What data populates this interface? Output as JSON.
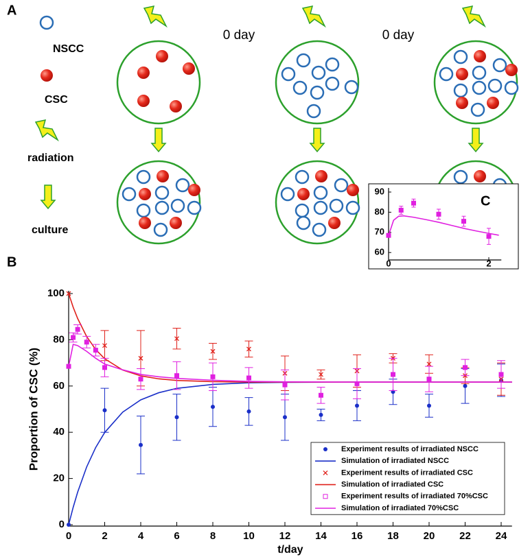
{
  "diagram": {
    "panel_label": "A",
    "legend": [
      "NSCC",
      "CSC",
      "radiation",
      "culture"
    ],
    "day_labels": [
      "0 day",
      "0 day"
    ]
  },
  "chart_data": [
    {
      "type": "line",
      "panel_label": "B",
      "xlabel": "t/day",
      "ylabel": "Proportion of CSC (%)",
      "xlim": [
        0,
        24.6
      ],
      "ylim": [
        0,
        100
      ],
      "xticks": [
        0,
        2,
        4,
        6,
        8,
        10,
        12,
        14,
        16,
        18,
        20,
        22,
        24
      ],
      "yticks": [
        0,
        20,
        40,
        60,
        80,
        100
      ],
      "legend": "lower right",
      "series": [
        {
          "name": "Experiment results of irradiated NSCC",
          "kind": "scatter",
          "marker": "dot",
          "color": "#1a2fc8",
          "x": [
            0,
            2,
            4,
            6,
            8,
            10,
            12,
            14,
            16,
            18,
            20,
            22,
            24
          ],
          "values": [
            0,
            49.5,
            34.5,
            46.5,
            51,
            49,
            46.5,
            47.5,
            51.5,
            57.5,
            51.5,
            60,
            62.5
          ],
          "errors": [
            0,
            9.5,
            12.5,
            10,
            8.5,
            6,
            10,
            2.5,
            6.5,
            5.5,
            5,
            7.5,
            7
          ]
        },
        {
          "name": "Simulation of irradiated NSCC",
          "kind": "line",
          "color": "#1a2fc8",
          "x": [
            0,
            0.25,
            0.5,
            1,
            1.5,
            2,
            3,
            4,
            5,
            6,
            8,
            10,
            12,
            16,
            20,
            24.6
          ],
          "values": [
            0,
            7.5,
            14.1,
            25,
            33.4,
            39.9,
            48.7,
            54,
            57.1,
            59,
            60.7,
            61.4,
            61.6,
            61.7,
            61.7,
            61.7
          ]
        },
        {
          "name": "Experiment results of irradiated CSC",
          "kind": "scatter",
          "marker": "x",
          "color": "#e0201a",
          "x": [
            0,
            2,
            4,
            6,
            8,
            10,
            12,
            14,
            16,
            18,
            20,
            22,
            24
          ],
          "values": [
            100,
            77.5,
            72,
            80.5,
            75,
            76,
            65.5,
            65,
            66.5,
            72,
            69.5,
            64.5,
            63
          ],
          "errors": [
            0,
            6.5,
            12,
            4.5,
            3.5,
            3.5,
            7.5,
            2,
            7,
            2,
            4,
            3.5,
            7
          ]
        },
        {
          "name": "Simulation of irradiated CSC",
          "kind": "line",
          "color": "#e0201a",
          "x": [
            0,
            0.25,
            0.5,
            1,
            1.5,
            2,
            3,
            4,
            5,
            6,
            8,
            10,
            12,
            16,
            20,
            24.6
          ],
          "values": [
            100,
            94.1,
            89.2,
            81.4,
            75.8,
            71.8,
            66.9,
            64.4,
            63.1,
            62.4,
            61.9,
            61.7,
            61.7,
            61.7,
            61.7,
            61.7
          ]
        },
        {
          "name": "Experiment results of irradiated 70%CSC",
          "kind": "scatter",
          "marker": "square",
          "color": "#e020e0",
          "x": [
            0,
            0.25,
            0.5,
            1,
            1.5,
            2,
            4,
            6,
            8,
            10,
            12,
            14,
            16,
            18,
            20,
            22,
            24
          ],
          "values": [
            68.5,
            81,
            84.5,
            79,
            75.5,
            68,
            63,
            64.5,
            64,
            63.5,
            60.5,
            56,
            61,
            65,
            63,
            68,
            65
          ],
          "errors": [
            0,
            2,
            2,
            2.5,
            2.5,
            4,
            4.5,
            6,
            6,
            4.5,
            6.5,
            3.5,
            6.5,
            7,
            5.5,
            3.5,
            6
          ]
        },
        {
          "name": "Simulation of irradiated 70%CSC",
          "kind": "line",
          "color": "#e020e0",
          "x": [
            0,
            0.25,
            0.5,
            1,
            1.5,
            2,
            3,
            4,
            5,
            6,
            8,
            10,
            12,
            16,
            20,
            24.6
          ],
          "values": [
            68.5,
            78,
            77.5,
            75,
            72,
            69.5,
            67,
            65,
            64,
            63.3,
            62.5,
            62,
            61.8,
            61.7,
            61.7,
            61.7
          ]
        }
      ]
    },
    {
      "type": "line",
      "panel_label": "C",
      "xlim": [
        0,
        2.25
      ],
      "ylim": [
        57,
        90
      ],
      "xticks": [
        0,
        2
      ],
      "yticks": [
        60,
        70,
        80,
        90
      ],
      "series": [
        {
          "kind": "scatter",
          "marker": "square",
          "color": "#e020e0",
          "x": [
            0,
            0.25,
            0.5,
            1,
            1.5,
            2
          ],
          "values": [
            68.5,
            81,
            84.5,
            79,
            75.5,
            68
          ],
          "errors": [
            0,
            2,
            2,
            2.5,
            2.5,
            4
          ]
        },
        {
          "kind": "line",
          "color": "#e020e0",
          "x": [
            0,
            0.1,
            0.2,
            0.3,
            0.5,
            0.75,
            1,
            1.25,
            1.5,
            1.75,
            2,
            2.2
          ],
          "values": [
            68.5,
            76,
            78,
            78.2,
            77.5,
            76.3,
            75,
            73.5,
            72,
            70.7,
            69.5,
            68.6
          ]
        }
      ]
    }
  ]
}
